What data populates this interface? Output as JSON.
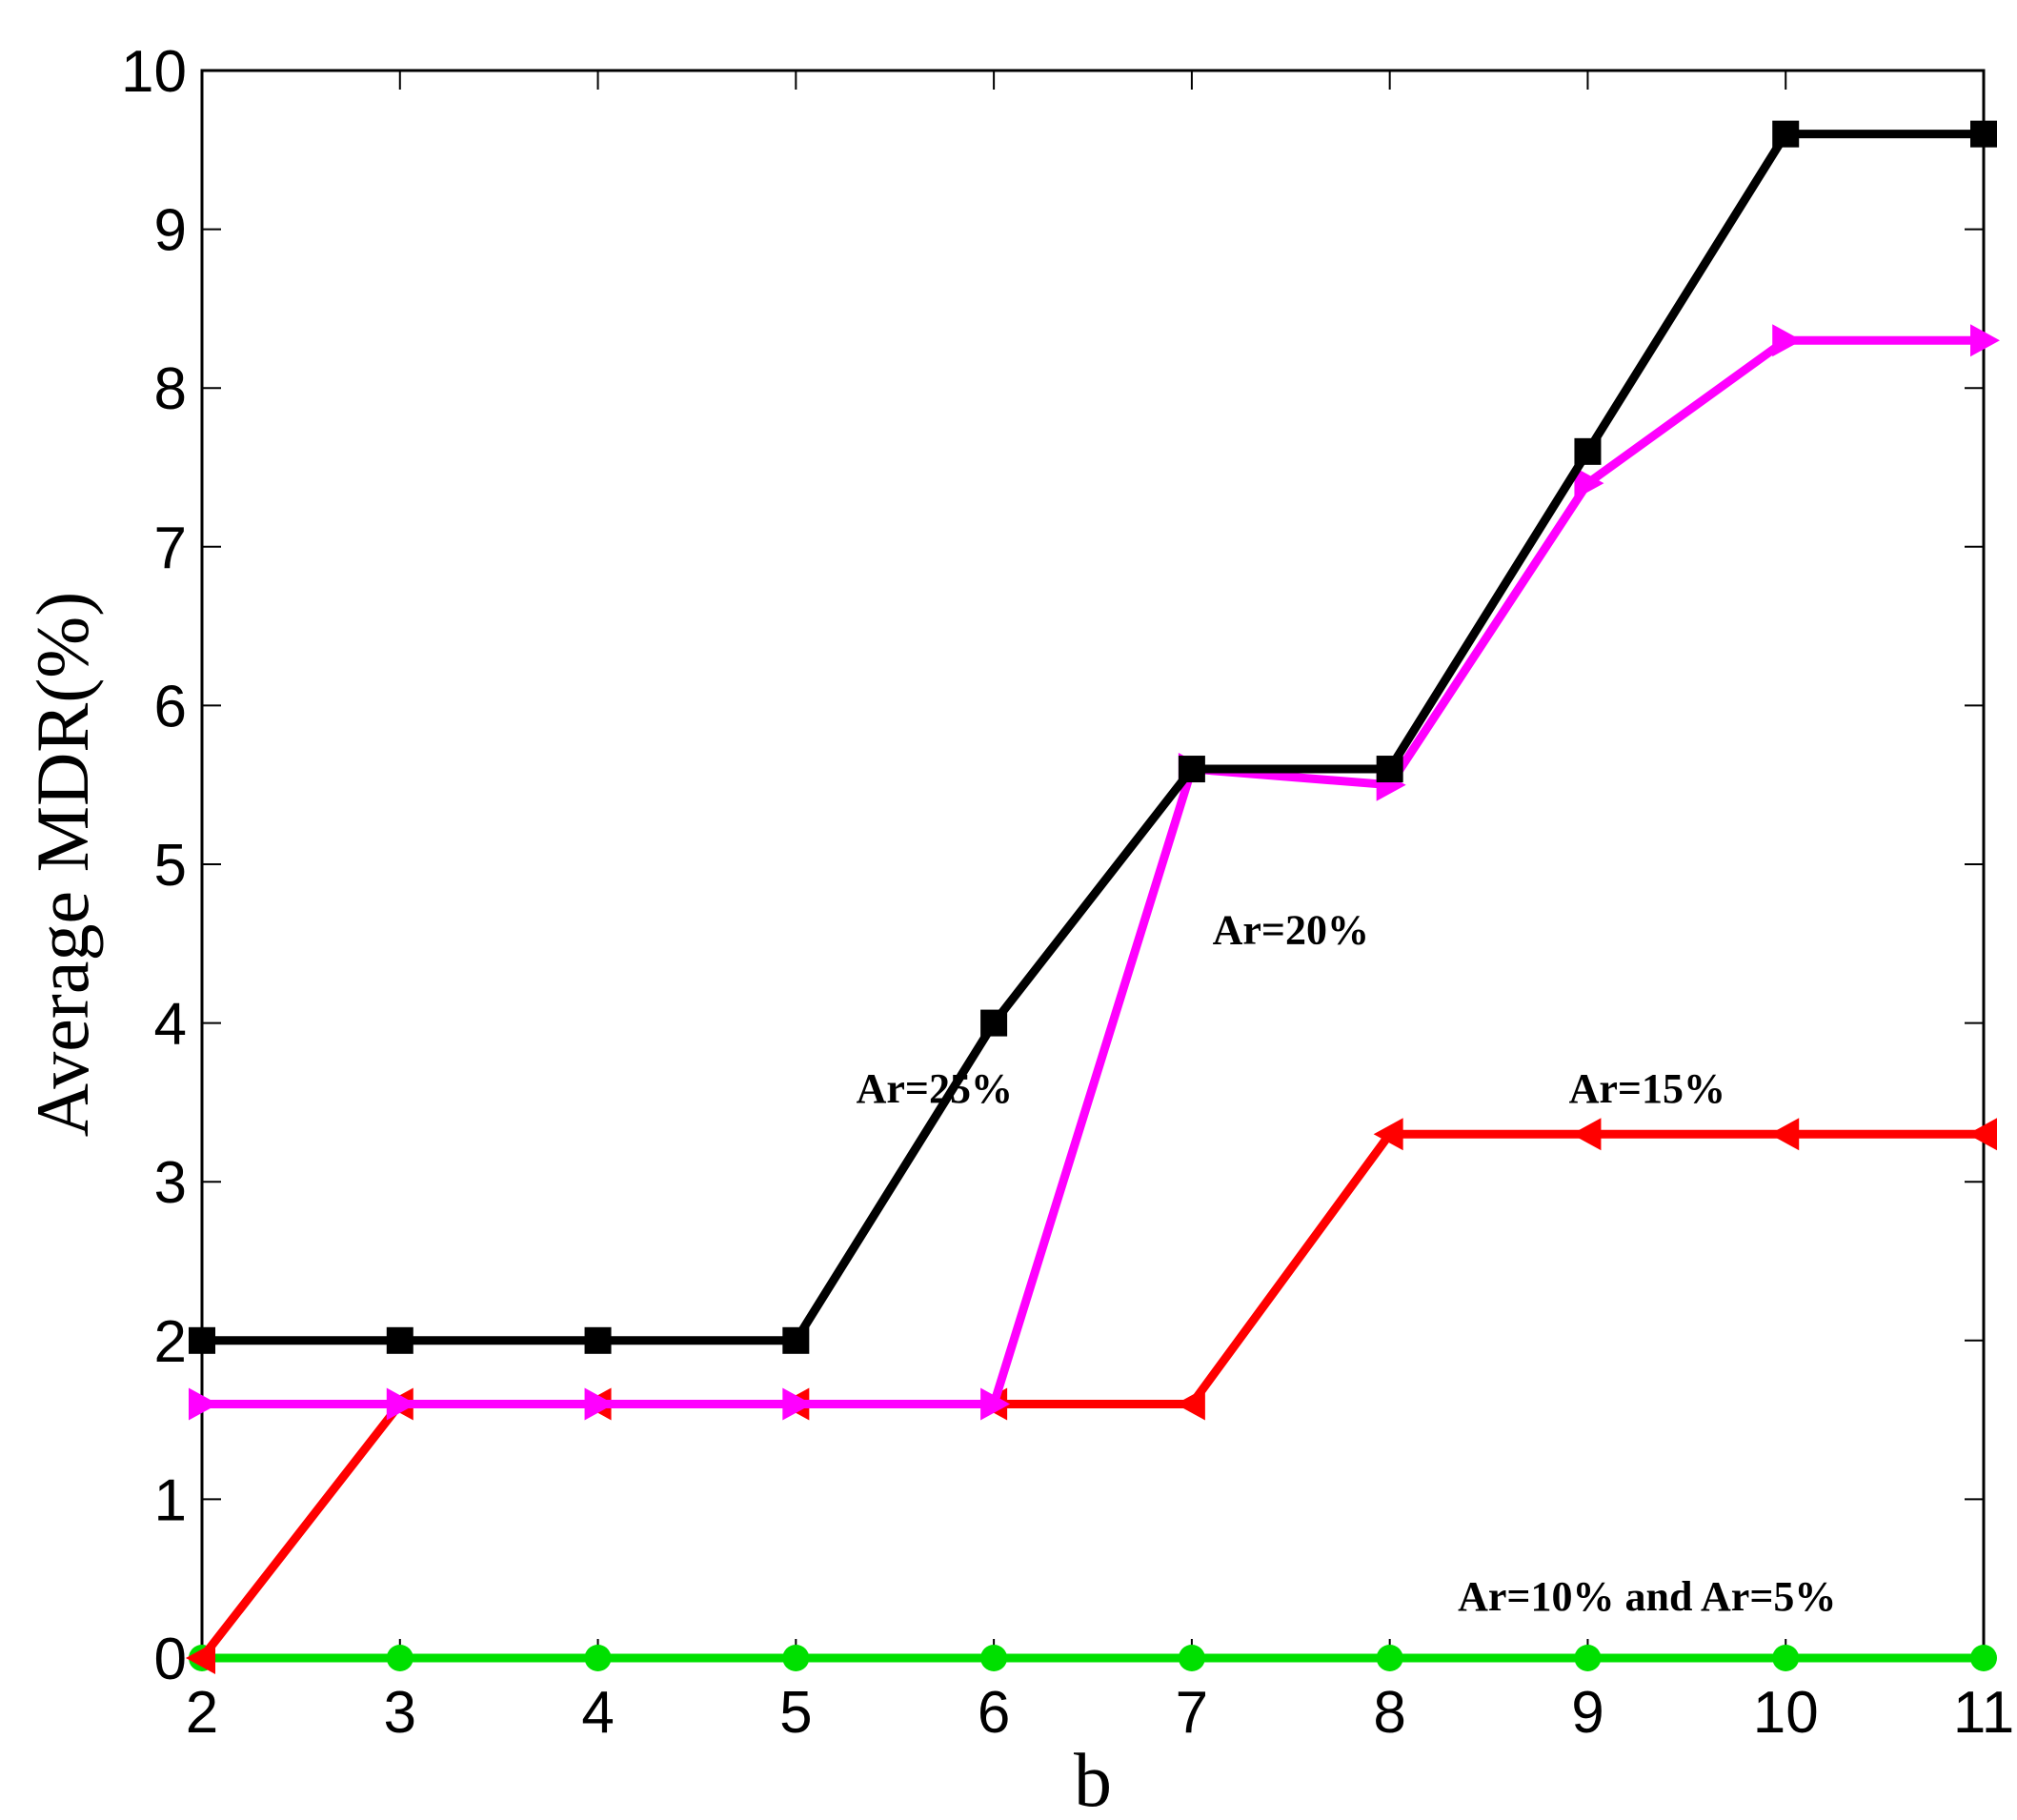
{
  "chart_data": {
    "type": "line",
    "title": "",
    "xlabel": "b",
    "ylabel": "Average MDR(%)",
    "xlim": [
      2,
      11
    ],
    "ylim": [
      0,
      10
    ],
    "x": [
      2,
      3,
      4,
      5,
      6,
      7,
      8,
      9,
      10,
      11
    ],
    "x_ticks": [
      "2",
      "3",
      "4",
      "5",
      "6",
      "7",
      "8",
      "9",
      "10",
      "11"
    ],
    "y_ticks": [
      "0",
      "1",
      "2",
      "3",
      "4",
      "5",
      "6",
      "7",
      "8",
      "9",
      "10"
    ],
    "grid": false,
    "series": [
      {
        "name": "Ar=10% and Ar=5%",
        "color": "#00e000",
        "marker": "circle",
        "values": [
          0,
          0,
          0,
          0,
          0,
          0,
          0,
          0,
          0,
          0
        ]
      },
      {
        "name": "Ar=15%",
        "color": "#ff0000",
        "marker": "triangle-left",
        "values": [
          0,
          1.6,
          1.6,
          1.6,
          1.6,
          1.6,
          3.3,
          3.3,
          3.3,
          3.3
        ]
      },
      {
        "name": "Ar=20%",
        "color": "#ff00ff",
        "marker": "triangle-right",
        "values": [
          1.6,
          1.6,
          1.6,
          1.6,
          1.6,
          5.6,
          5.5,
          7.4,
          8.3,
          8.3
        ]
      },
      {
        "name": "Ar=25%",
        "color": "#000000",
        "marker": "square",
        "values": [
          2,
          2,
          2,
          2,
          4,
          5.6,
          5.6,
          7.6,
          9.6,
          9.6
        ]
      }
    ],
    "annotations": [
      {
        "text": "Ar=25%",
        "x": 5.7,
        "y": 3.5
      },
      {
        "text": "Ar=20%",
        "x": 7.5,
        "y": 4.5
      },
      {
        "text": "Ar=15%",
        "x": 9.3,
        "y": 3.5
      },
      {
        "text": "Ar=10% and Ar=5%",
        "x": 9.3,
        "y": 0.3
      }
    ]
  }
}
